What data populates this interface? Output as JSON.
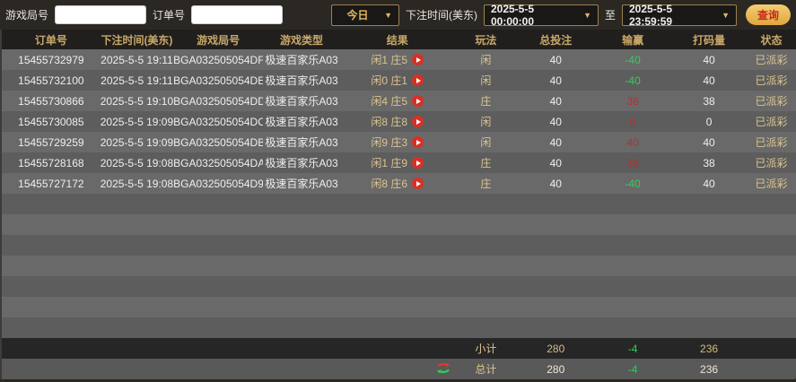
{
  "filter_bar": {
    "game_round_label": "游戏局号",
    "order_no_label": "订单号",
    "period_selected": "今日",
    "bet_time_label": "下注时间(美东)",
    "start_time": "2025-5-5 00:00:00",
    "to_label": "至",
    "end_time": "2025-5-5 23:59:59",
    "query_button_label": "查询"
  },
  "table": {
    "headers": [
      "订单号",
      "下注时间(美东)",
      "游戏局号",
      "游戏类型",
      "结果",
      "玩法",
      "总投注",
      "输赢",
      "打码量",
      "状态"
    ],
    "rows": [
      {
        "order_no": "15455732979",
        "bet_time": "2025-5-5 19:11",
        "round_no": "BGA032505054DF",
        "game_type": "极速百家乐A03",
        "result": "闲1 庄5",
        "play": "闲",
        "total_bet": "40",
        "win_loss": "-40",
        "turnover": "40",
        "status": "已派彩"
      },
      {
        "order_no": "15455732100",
        "bet_time": "2025-5-5 19:11",
        "round_no": "BGA032505054DE",
        "game_type": "极速百家乐A03",
        "result": "闲0 庄1",
        "play": "闲",
        "total_bet": "40",
        "win_loss": "-40",
        "turnover": "40",
        "status": "已派彩"
      },
      {
        "order_no": "15455730866",
        "bet_time": "2025-5-5 19:10",
        "round_no": "BGA032505054DD",
        "game_type": "极速百家乐A03",
        "result": "闲4 庄5",
        "play": "庄",
        "total_bet": "40",
        "win_loss": "38",
        "turnover": "38",
        "status": "已派彩"
      },
      {
        "order_no": "15455730085",
        "bet_time": "2025-5-5 19:09",
        "round_no": "BGA032505054DC",
        "game_type": "极速百家乐A03",
        "result": "闲8 庄8",
        "play": "闲",
        "total_bet": "40",
        "win_loss": "0",
        "turnover": "0",
        "status": "已派彩"
      },
      {
        "order_no": "15455729259",
        "bet_time": "2025-5-5 19:09",
        "round_no": "BGA032505054DB",
        "game_type": "极速百家乐A03",
        "result": "闲9 庄3",
        "play": "闲",
        "total_bet": "40",
        "win_loss": "40",
        "turnover": "40",
        "status": "已派彩"
      },
      {
        "order_no": "15455728168",
        "bet_time": "2025-5-5 19:08",
        "round_no": "BGA032505054DA",
        "game_type": "极速百家乐A03",
        "result": "闲1 庄9",
        "play": "庄",
        "total_bet": "40",
        "win_loss": "38",
        "turnover": "38",
        "status": "已派彩"
      },
      {
        "order_no": "15455727172",
        "bet_time": "2025-5-5 19:08",
        "round_no": "BGA032505054D9",
        "game_type": "极速百家乐A03",
        "result": "闲8 庄6",
        "play": "庄",
        "total_bet": "40",
        "win_loss": "-40",
        "turnover": "40",
        "status": "已派彩"
      }
    ],
    "subtotal": {
      "label": "小计",
      "total_bet": "280",
      "win_loss": "-4",
      "turnover": "236"
    },
    "total": {
      "label": "总计",
      "total_bet": "280",
      "win_loss": "-4",
      "turnover": "236"
    }
  },
  "colors": {
    "filter_bar_bg": "#2b2823",
    "header_bg": "#211f1d",
    "header_text_gold": "#c9a86a",
    "row_light": "#696969",
    "row_dark": "#5d5d5d",
    "cell_gold_text": "#dcc490",
    "win_positive_red": "#b23131",
    "win_negative_green": "#2ed352",
    "play_icon_red": "#d93025",
    "query_button_gold": "#e8b654",
    "query_button_text_red": "#c5281c"
  }
}
